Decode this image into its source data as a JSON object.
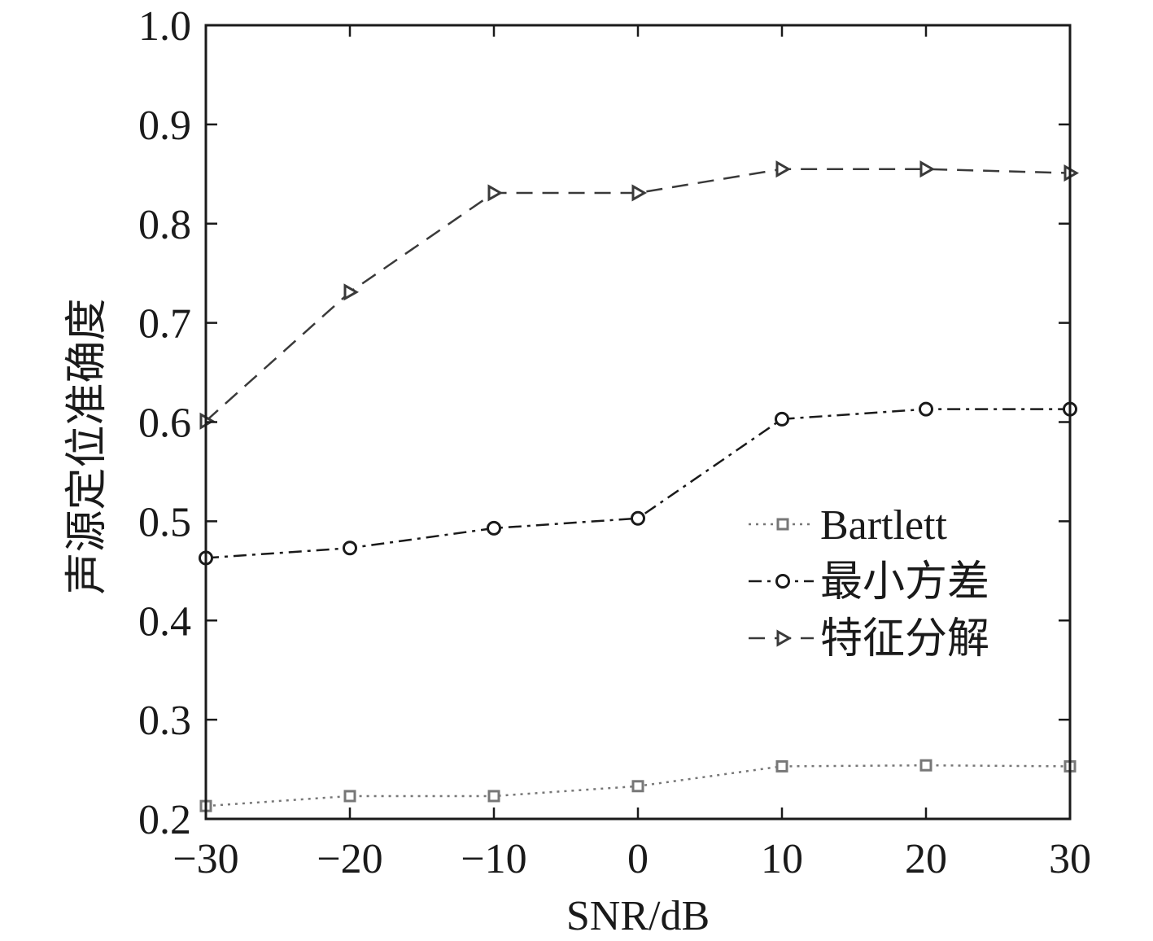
{
  "chart_data": {
    "type": "line",
    "title": "",
    "xlabel": "SNR/dB",
    "ylabel": "声源定位准确度",
    "xlim": [
      -30,
      30
    ],
    "ylim": [
      0.2,
      1.0
    ],
    "x": [
      -30,
      -20,
      -10,
      0,
      10,
      20,
      30
    ],
    "x_tick_labels": [
      "−30",
      "−20",
      "−10",
      "0",
      "10",
      "20",
      "30"
    ],
    "y_ticks": [
      0.2,
      0.3,
      0.4,
      0.5,
      0.6,
      0.7,
      0.8,
      0.9,
      1.0
    ],
    "y_tick_labels": [
      "0.2",
      "0.3",
      "0.4",
      "0.5",
      "0.6",
      "0.7",
      "0.8",
      "0.9",
      "1.0"
    ],
    "grid": false,
    "legend_position": "right-middle",
    "series": [
      {
        "name": "Bartlett",
        "values": [
          0.213,
          0.223,
          0.223,
          0.233,
          0.253,
          0.254,
          0.253
        ],
        "line_style": "dotted",
        "marker": "square",
        "color": "#777777"
      },
      {
        "name": "最小方差",
        "values": [
          0.463,
          0.473,
          0.493,
          0.503,
          0.603,
          0.613,
          0.613
        ],
        "line_style": "dash-dot",
        "marker": "circle",
        "color": "#1a1a1a"
      },
      {
        "name": "特征分解",
        "values": [
          0.601,
          0.731,
          0.831,
          0.831,
          0.855,
          0.855,
          0.851
        ],
        "line_style": "dashed",
        "marker": "triangle-right",
        "color": "#3a3a3a"
      }
    ]
  }
}
